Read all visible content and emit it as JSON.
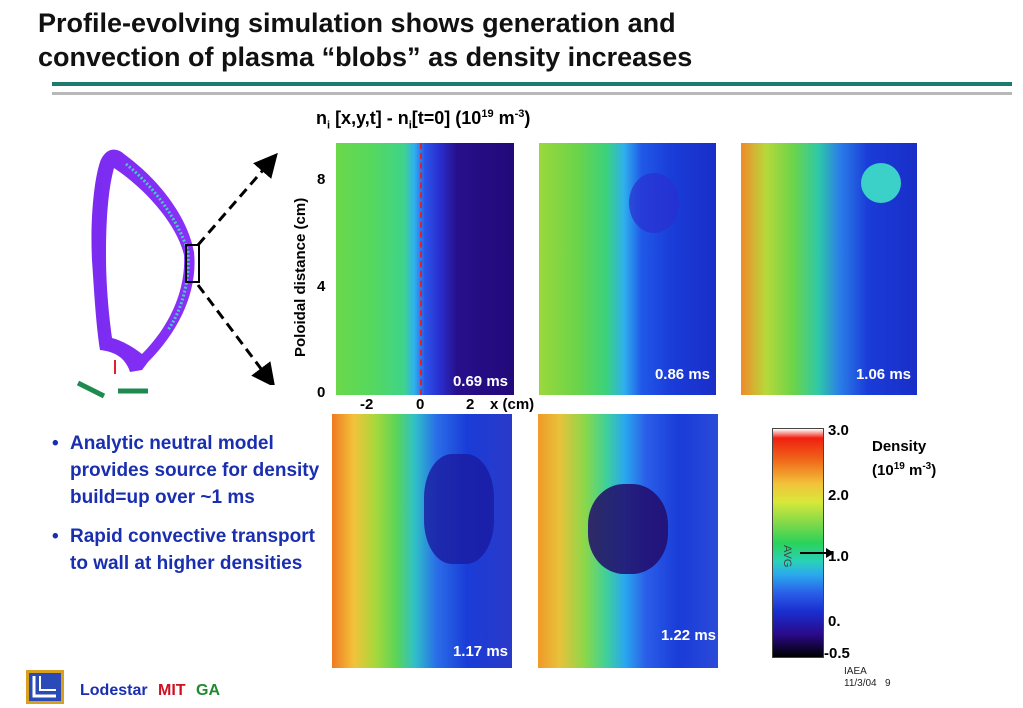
{
  "title_line1": "Profile-evolving simulation shows generation and",
  "title_line2": "convection of plasma “blobs” as density increases",
  "colors": {
    "rule_teal": "#1f7a6e",
    "rule_gray": "#b8b8b8",
    "bullet_text": "#1a2fb0",
    "marker_red": "#e0202a",
    "marker_green": "#1f8a50",
    "brand_blue": "#1a2fb0",
    "brand_red": "#d01020",
    "brand_green": "#1f8a30"
  },
  "plot": {
    "heading_n": "n",
    "heading_sub_i": "i",
    "heading_mid": " [x,y,t] - n",
    "heading_sub_i2": "i",
    "heading_after": "[t=0] (10",
    "heading_exp": "19",
    "heading_unit": " m",
    "heading_unit_exp": "-3",
    "heading_close": ")",
    "ylabel": "Poloidal distance (cm)",
    "y_ticks": [
      "8",
      "4",
      "0"
    ],
    "x_ticks": [
      "-2",
      "0",
      "2"
    ],
    "xlabel": "x (cm)"
  },
  "panels": [
    {
      "time": "0.69 ms"
    },
    {
      "time": "0.86 ms"
    },
    {
      "time": "1.06 ms"
    },
    {
      "time": "1.17 ms"
    },
    {
      "time": "1.22 ms"
    }
  ],
  "colorbar": {
    "ticks": [
      "3.0",
      "2.0",
      "1.0",
      "0.",
      "-0.5"
    ],
    "label_line1": "Density",
    "label_pre": "(10",
    "label_exp": "19",
    "label_unit": " m",
    "label_unit_exp": "-3",
    "label_close": ")",
    "avg_marker": "AVG"
  },
  "bullets": [
    "Analytic neutral model provides source for density build=up over ~1 ms",
    "Rapid convective transport to wall at higher densities"
  ],
  "bullet_symbol": "•",
  "footer": {
    "brand1": "Lodestar",
    "brand2": "MIT",
    "brand3": "GA",
    "conference": "IAEA",
    "date": "11/3/04",
    "page": "9"
  }
}
